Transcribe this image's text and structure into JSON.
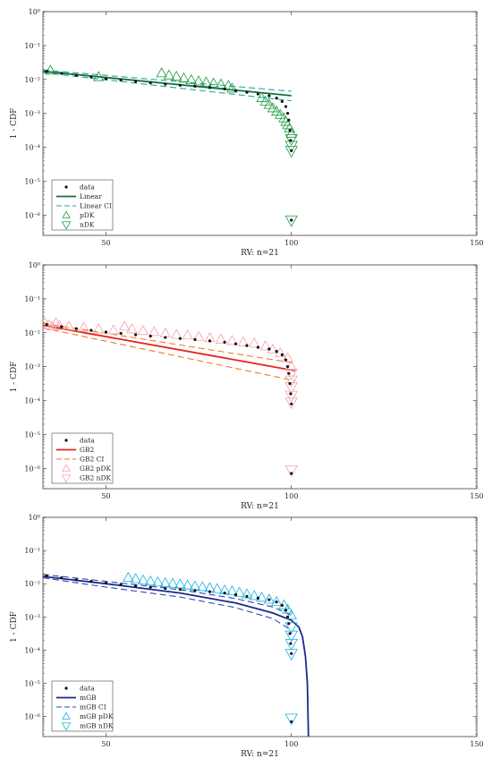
{
  "chart_data": [
    {
      "type": "line",
      "xlabel": "RV: n=21",
      "ylabel": "1 - CDF",
      "xlim": [
        33,
        150
      ],
      "ylim_log10": [
        -6.6,
        0
      ],
      "xticks": [
        "50",
        "100",
        "150"
      ],
      "yticks": [
        "10^0",
        "10^-1",
        "10^-2",
        "10^-3",
        "10^-4",
        "10^-5",
        "10^-6"
      ],
      "legend": [
        "data",
        "Linear",
        "Linear CI",
        "pDK",
        "nDK"
      ],
      "colors": {
        "fit": "#1f6b3a",
        "ci": "#19a8a0",
        "pdk": "#1a9a3c",
        "ndk": "#1a9a3c"
      },
      "fit": [
        [
          33,
          -1.76
        ],
        [
          100,
          -2.48
        ]
      ],
      "ci_upper": [
        [
          33,
          -1.72
        ],
        [
          100,
          -2.35
        ]
      ],
      "ci_lower": [
        [
          33,
          -1.8
        ],
        [
          100,
          -2.63
        ]
      ],
      "data": [
        [
          34,
          -1.76
        ],
        [
          38,
          -1.82
        ],
        [
          42,
          -1.88
        ],
        [
          46,
          -1.93
        ],
        [
          50,
          -1.98
        ],
        [
          54,
          -2.02
        ],
        [
          58,
          -2.06
        ],
        [
          62,
          -2.1
        ],
        [
          66,
          -2.14
        ],
        [
          70,
          -2.17
        ],
        [
          74,
          -2.2
        ],
        [
          78,
          -2.24
        ],
        [
          82,
          -2.28
        ],
        [
          85,
          -2.33
        ],
        [
          88,
          -2.38
        ],
        [
          91,
          -2.43
        ],
        [
          94,
          -2.48
        ],
        [
          96,
          -2.55
        ],
        [
          97.5,
          -2.65
        ],
        [
          98.5,
          -2.8
        ],
        [
          99,
          -3.0
        ],
        [
          99.3,
          -3.2
        ],
        [
          99.6,
          -3.5
        ],
        [
          99.8,
          -3.8
        ],
        [
          100,
          -4.1
        ],
        [
          100,
          -6.15
        ]
      ],
      "pdk": [
        [
          35,
          -1.74
        ],
        [
          48,
          -1.93
        ],
        [
          65,
          -1.82
        ],
        [
          67,
          -1.88
        ],
        [
          69,
          -1.92
        ],
        [
          71,
          -1.97
        ],
        [
          73,
          -2.02
        ],
        [
          75,
          -2.06
        ],
        [
          77,
          -2.09
        ],
        [
          79,
          -2.12
        ],
        [
          81,
          -2.15
        ],
        [
          83,
          -2.19
        ],
        [
          84,
          -2.27
        ],
        [
          92,
          -2.55
        ],
        [
          93,
          -2.65
        ],
        [
          94,
          -2.75
        ],
        [
          95,
          -2.85
        ],
        [
          96,
          -2.95
        ],
        [
          97,
          -3.05
        ],
        [
          98,
          -3.15
        ],
        [
          98.5,
          -3.25
        ],
        [
          99,
          -3.35
        ],
        [
          99.5,
          -3.45
        ],
        [
          100,
          -3.6
        ]
      ],
      "ndk": [
        [
          100,
          -3.75
        ],
        [
          100,
          -3.95
        ],
        [
          100,
          -4.1
        ],
        [
          100,
          -6.15
        ]
      ]
    },
    {
      "type": "line",
      "xlabel": "RV: n=21",
      "ylabel": "1 - CDF",
      "xlim": [
        33,
        150
      ],
      "ylim_log10": [
        -6.6,
        0
      ],
      "xticks": [
        "50",
        "100",
        "150"
      ],
      "yticks": [
        "10^0",
        "10^-1",
        "10^-2",
        "10^-3",
        "10^-4",
        "10^-5",
        "10^-6"
      ],
      "legend": [
        "data",
        "GB2",
        "GB2 CI",
        "GB2 pDK",
        "GB2 nDK"
      ],
      "colors": {
        "fit": "#e8201e",
        "ci": "#f07a20",
        "pdk": "#f4a0a8",
        "ndk": "#f4a0a8"
      },
      "fit": [
        [
          33,
          -1.78
        ],
        [
          101,
          -3.12
        ]
      ],
      "ci_upper": [
        [
          33,
          -1.72
        ],
        [
          101,
          -2.9
        ]
      ],
      "ci_lower": [
        [
          33,
          -1.86
        ],
        [
          101,
          -3.42
        ]
      ],
      "data": [
        [
          34,
          -1.76
        ],
        [
          38,
          -1.82
        ],
        [
          42,
          -1.88
        ],
        [
          46,
          -1.93
        ],
        [
          50,
          -1.98
        ],
        [
          54,
          -2.02
        ],
        [
          58,
          -2.06
        ],
        [
          62,
          -2.1
        ],
        [
          66,
          -2.14
        ],
        [
          70,
          -2.17
        ],
        [
          74,
          -2.2
        ],
        [
          78,
          -2.24
        ],
        [
          82,
          -2.28
        ],
        [
          85,
          -2.33
        ],
        [
          88,
          -2.38
        ],
        [
          91,
          -2.43
        ],
        [
          94,
          -2.48
        ],
        [
          96,
          -2.55
        ],
        [
          97.5,
          -2.65
        ],
        [
          98.5,
          -2.8
        ],
        [
          99,
          -3.0
        ],
        [
          99.3,
          -3.2
        ],
        [
          99.6,
          -3.5
        ],
        [
          99.8,
          -3.8
        ],
        [
          100,
          -4.1
        ],
        [
          100,
          -6.15
        ]
      ],
      "pdk": [
        [
          33.5,
          -1.72
        ],
        [
          34.5,
          -1.78
        ],
        [
          35.5,
          -1.82
        ],
        [
          36.5,
          -1.72
        ],
        [
          37.5,
          -1.8
        ],
        [
          40,
          -1.82
        ],
        [
          44,
          -1.85
        ],
        [
          48,
          -1.9
        ],
        [
          52,
          -1.93
        ],
        [
          55,
          -1.82
        ],
        [
          57,
          -1.9
        ],
        [
          60,
          -1.95
        ],
        [
          63,
          -1.98
        ],
        [
          66,
          -2.02
        ],
        [
          69,
          -2.06
        ],
        [
          72,
          -2.08
        ],
        [
          75,
          -2.12
        ],
        [
          78,
          -2.16
        ],
        [
          81,
          -2.2
        ],
        [
          84,
          -2.24
        ],
        [
          87,
          -2.28
        ],
        [
          90,
          -2.32
        ],
        [
          93,
          -2.4
        ],
        [
          95,
          -2.5
        ],
        [
          97,
          -2.6
        ],
        [
          99,
          -2.75
        ],
        [
          100,
          -3.0
        ]
      ],
      "ndk": [
        [
          100,
          -3.2
        ],
        [
          100,
          -3.4
        ],
        [
          100,
          -3.6
        ],
        [
          100,
          -3.85
        ],
        [
          100,
          -4.05
        ],
        [
          100,
          -6.05
        ]
      ]
    },
    {
      "type": "line",
      "xlabel": "RV: n=21",
      "ylabel": "1 - CDF",
      "xlim": [
        33,
        150
      ],
      "ylim_log10": [
        -6.6,
        0
      ],
      "xticks": [
        "50",
        "100",
        "150"
      ],
      "yticks": [
        "10^0",
        "10^-1",
        "10^-2",
        "10^-3",
        "10^-4",
        "10^-5",
        "10^-6"
      ],
      "legend": [
        "data",
        "mGB",
        "mGB CI",
        "mGB pDK",
        "mGB nDK"
      ],
      "colors": {
        "fit": "#1a2a8a",
        "ci": "#2e4aa8",
        "pdk": "#18b0e0",
        "ndk": "#18b0e0"
      },
      "fit": [
        [
          33,
          -1.78
        ],
        [
          50,
          -2.0
        ],
        [
          70,
          -2.28
        ],
        [
          85,
          -2.58
        ],
        [
          95,
          -2.88
        ],
        [
          100,
          -3.1
        ],
        [
          102,
          -3.3
        ],
        [
          103,
          -3.6
        ],
        [
          103.8,
          -4.2
        ],
        [
          104.3,
          -5.0
        ],
        [
          104.6,
          -6.6
        ]
      ],
      "ci_upper": [
        [
          33,
          -1.72
        ],
        [
          50,
          -1.93
        ],
        [
          70,
          -2.18
        ],
        [
          85,
          -2.45
        ],
        [
          95,
          -2.7
        ],
        [
          100,
          -2.95
        ]
      ],
      "ci_lower": [
        [
          33,
          -1.82
        ],
        [
          50,
          -2.1
        ],
        [
          70,
          -2.4
        ],
        [
          85,
          -2.72
        ],
        [
          95,
          -3.05
        ],
        [
          100,
          -3.4
        ]
      ],
      "data": [
        [
          34,
          -1.76
        ],
        [
          38,
          -1.82
        ],
        [
          42,
          -1.88
        ],
        [
          46,
          -1.93
        ],
        [
          50,
          -1.98
        ],
        [
          54,
          -2.02
        ],
        [
          58,
          -2.06
        ],
        [
          62,
          -2.1
        ],
        [
          66,
          -2.14
        ],
        [
          70,
          -2.17
        ],
        [
          74,
          -2.2
        ],
        [
          78,
          -2.24
        ],
        [
          82,
          -2.28
        ],
        [
          85,
          -2.33
        ],
        [
          88,
          -2.38
        ],
        [
          91,
          -2.43
        ],
        [
          94,
          -2.48
        ],
        [
          96,
          -2.55
        ],
        [
          97.5,
          -2.65
        ],
        [
          98.5,
          -2.8
        ],
        [
          99,
          -3.0
        ],
        [
          99.3,
          -3.2
        ],
        [
          99.6,
          -3.5
        ],
        [
          99.8,
          -3.8
        ],
        [
          100,
          -4.1
        ],
        [
          100,
          -6.15
        ]
      ],
      "pdk": [
        [
          56,
          -1.82
        ],
        [
          58,
          -1.86
        ],
        [
          60,
          -1.9
        ],
        [
          62,
          -1.93
        ],
        [
          64,
          -1.96
        ],
        [
          66,
          -1.98
        ],
        [
          68,
          -2.0
        ],
        [
          70,
          -2.02
        ],
        [
          72,
          -2.05
        ],
        [
          74,
          -2.08
        ],
        [
          76,
          -2.1
        ],
        [
          78,
          -2.13
        ],
        [
          80,
          -2.16
        ],
        [
          82,
          -2.2
        ],
        [
          84,
          -2.23
        ],
        [
          86,
          -2.27
        ],
        [
          88,
          -2.32
        ],
        [
          90,
          -2.37
        ],
        [
          92,
          -2.42
        ],
        [
          94,
          -2.48
        ],
        [
          96,
          -2.55
        ],
        [
          98,
          -2.65
        ],
        [
          99,
          -2.78
        ],
        [
          100,
          -2.95
        ]
      ],
      "ndk": [
        [
          100,
          -3.3
        ],
        [
          100,
          -3.55
        ],
        [
          100,
          -3.8
        ],
        [
          100,
          -4.1
        ],
        [
          100,
          -6.05
        ]
      ]
    }
  ]
}
